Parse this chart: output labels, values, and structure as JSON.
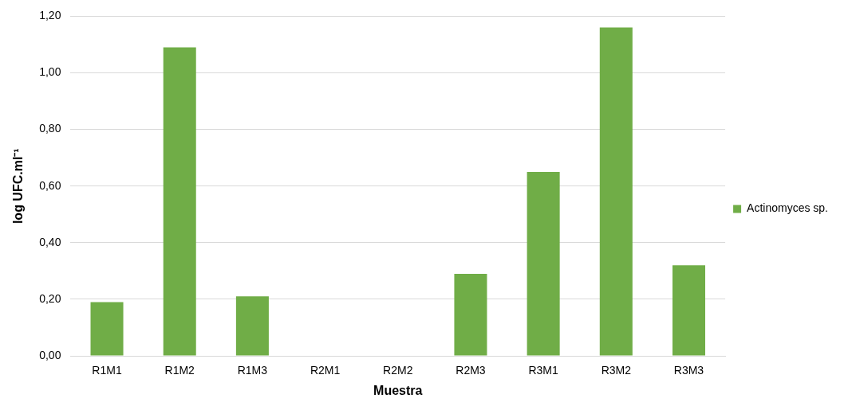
{
  "chart_data": {
    "type": "bar",
    "xlabel": "Muestra",
    "ylabel": "log UFC.ml⁻¹",
    "categories": [
      "R1M1",
      "R1M2",
      "R1M3",
      "R2M1",
      "R2M2",
      "R2M3",
      "R3M1",
      "R3M2",
      "R3M3"
    ],
    "series": [
      {
        "name": "Actinomyces sp.",
        "color": "#70ad47",
        "values": [
          0.19,
          1.09,
          0.21,
          0,
          0,
          0.29,
          0.65,
          1.16,
          0.32
        ]
      }
    ],
    "ylim": [
      0,
      1.2
    ],
    "yticks": [
      {
        "value": 0,
        "label": "0,00"
      },
      {
        "value": 0.2,
        "label": "0,20"
      },
      {
        "value": 0.4,
        "label": "0,40"
      },
      {
        "value": 0.6,
        "label": "0,60"
      },
      {
        "value": 0.8,
        "label": "0,80"
      },
      {
        "value": 1.0,
        "label": "1,00"
      },
      {
        "value": 1.2,
        "label": "1,20"
      }
    ],
    "grid": "y",
    "legend": "right"
  }
}
